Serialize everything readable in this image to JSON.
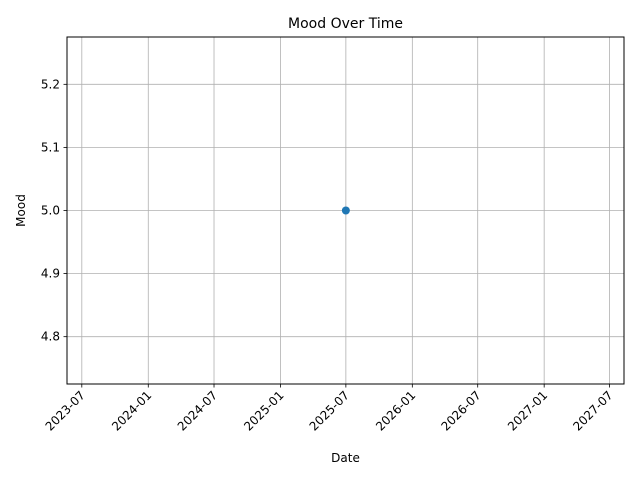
{
  "chart_data": {
    "type": "scatter",
    "title": "Mood Over Time",
    "xlabel": "Date",
    "ylabel": "Mood",
    "x_ticks": [
      "2023-07",
      "2024-01",
      "2024-07",
      "2025-01",
      "2025-07",
      "2026-01",
      "2026-07",
      "2027-01",
      "2027-07"
    ],
    "y_ticks": [
      "4.8",
      "4.9",
      "5.0",
      "5.1",
      "5.2"
    ],
    "x_range": [
      "2023-05-21",
      "2027-08-10"
    ],
    "ylim": [
      4.725,
      5.275
    ],
    "grid": true,
    "series": [
      {
        "color": "#1f77b4",
        "points": [
          {
            "x": "2025-07-01",
            "y": 5.0
          }
        ]
      }
    ]
  }
}
